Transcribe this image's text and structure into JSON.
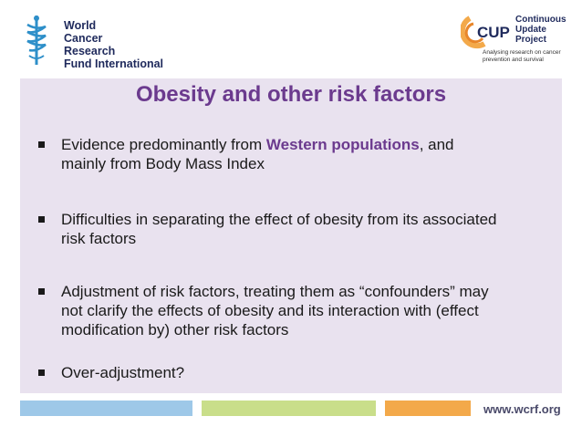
{
  "header": {
    "org_lines": [
      "World",
      "Cancer",
      "Research",
      "Fund International"
    ],
    "cup_lines": [
      "Continuous",
      "Update",
      "Project"
    ],
    "cup_label": "CUP",
    "cup_tag_lines": [
      "Analysing research on cancer",
      "prevention and survival"
    ]
  },
  "slide": {
    "title": "Obesity and other risk factors",
    "bullets": [
      {
        "lines": [
          {
            "pre": "Evidence predominantly from ",
            "highlight": "Western populations",
            "post": ", and"
          },
          {
            "pre": "mainly from Body Mass Index"
          }
        ]
      },
      {
        "lines": [
          {
            "pre": "Difficulties in separating the effect of obesity from its associated"
          },
          {
            "pre": "risk factors"
          }
        ]
      },
      {
        "lines": [
          {
            "pre": "Adjustment of risk factors, treating them as “confounders” may"
          },
          {
            "pre": "not clarify the effects of obesity and its interaction with (effect"
          },
          {
            "pre": "modification by) other risk factors"
          }
        ]
      },
      {
        "lines": [
          {
            "pre": "Over-adjustment?"
          }
        ]
      }
    ]
  },
  "footer": {
    "url": "www.wcrf.org"
  },
  "colors": {
    "accent": "#6b3a8e",
    "panel": "#e9e2ef",
    "bar_blue": "#9ec8e8",
    "bar_green": "#c9de8a",
    "bar_orange": "#f3a94a"
  }
}
